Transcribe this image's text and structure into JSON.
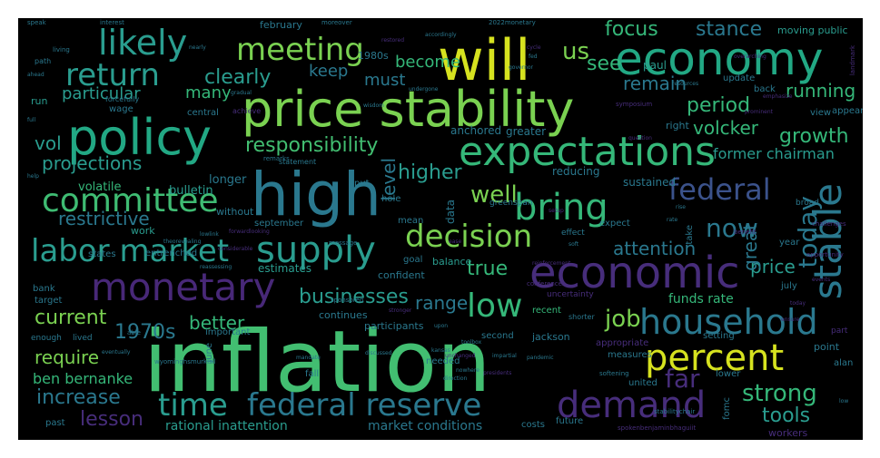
{
  "title": "",
  "palette": {
    "background": "#000000",
    "yellow": "#d6e21f",
    "light_green": "#7ad151",
    "green": "#42be71",
    "teal_green": "#22a884",
    "teal": "#2a788e",
    "blue": "#33638d",
    "purple": "#472d7b",
    "dark_purple": "#3b0f70"
  },
  "words": [
    {
      "text": "inflation",
      "color": "#42be71"
    },
    {
      "text": "price stability",
      "color": "#7ad151"
    },
    {
      "text": "will",
      "color": "#d6e21f"
    },
    {
      "text": "high",
      "color": "#2a788e"
    },
    {
      "text": "economy",
      "color": "#22a884"
    },
    {
      "text": "policy",
      "color": "#22a884"
    },
    {
      "text": "expectations",
      "color": "#35b779"
    },
    {
      "text": "economic",
      "color": "#472d7b"
    },
    {
      "text": "labor market",
      "color": "#2a9d8f"
    },
    {
      "text": "supply",
      "color": "#2a9d8f"
    },
    {
      "text": "monetary",
      "color": "#482878"
    },
    {
      "text": "committee",
      "color": "#3fbc73"
    },
    {
      "text": "likely",
      "color": "#2a9d8f"
    },
    {
      "text": "meeting",
      "color": "#7ad151"
    },
    {
      "text": "return",
      "color": "#2a9d8f"
    },
    {
      "text": "bring",
      "color": "#35b779"
    },
    {
      "text": "household",
      "color": "#2a788e"
    },
    {
      "text": "demand",
      "color": "#472d7b"
    },
    {
      "text": "federal reserve",
      "color": "#2a788e"
    },
    {
      "text": "time",
      "color": "#2a9d8f"
    },
    {
      "text": "percent",
      "color": "#d6e21f"
    },
    {
      "text": "stable",
      "color": "#2a788e"
    },
    {
      "text": "decision",
      "color": "#7ad151"
    },
    {
      "text": "low",
      "color": "#35b779"
    },
    {
      "text": "federal",
      "color": "#3b528b"
    },
    {
      "text": "responsibility",
      "color": "#42be71"
    },
    {
      "text": "today",
      "color": "#2a788e"
    },
    {
      "text": "now",
      "color": "#2a788e"
    },
    {
      "text": "well",
      "color": "#7ad151"
    },
    {
      "text": "businesses",
      "color": "#2a9d8f"
    },
    {
      "text": "current",
      "color": "#7ad151"
    },
    {
      "text": "1970s",
      "color": "#2a788e"
    },
    {
      "text": "lesson",
      "color": "#472d7b"
    },
    {
      "text": "increase",
      "color": "#2a788e"
    },
    {
      "text": "strong",
      "color": "#35b779"
    },
    {
      "text": "restrictive",
      "color": "#2a788e"
    },
    {
      "text": "clearly",
      "color": "#2a9d8f"
    },
    {
      "text": "focus",
      "color": "#35b779"
    },
    {
      "text": "stance",
      "color": "#2a788e"
    },
    {
      "text": "us",
      "color": "#7ad151"
    },
    {
      "text": "see",
      "color": "#35b779"
    },
    {
      "text": "remain",
      "color": "#2a788e"
    },
    {
      "text": "period",
      "color": "#35b779"
    },
    {
      "text": "running",
      "color": "#35b779"
    },
    {
      "text": "growth",
      "color": "#35b779"
    },
    {
      "text": "volcker",
      "color": "#35b779"
    },
    {
      "text": "former chairman",
      "color": "#2a9d8f"
    },
    {
      "text": "projections",
      "color": "#2a9d8f"
    },
    {
      "text": "particular",
      "color": "#2a9d8f"
    },
    {
      "text": "many",
      "color": "#35b779"
    },
    {
      "text": "keep",
      "color": "#2a788e"
    },
    {
      "text": "must",
      "color": "#2a788e"
    },
    {
      "text": "become",
      "color": "#35b779"
    },
    {
      "text": "higher",
      "color": "#2a9d8f"
    },
    {
      "text": "vol",
      "color": "#2a9d8f"
    },
    {
      "text": "level",
      "color": "#2a788e"
    },
    {
      "text": "true",
      "color": "#35b779"
    },
    {
      "text": "range",
      "color": "#2a788e"
    },
    {
      "text": "job",
      "color": "#7ad151"
    },
    {
      "text": "better",
      "color": "#35b779"
    },
    {
      "text": "require",
      "color": "#7ad151"
    },
    {
      "text": "ben bernanke",
      "color": "#35b779"
    },
    {
      "text": "far",
      "color": "#472d7b"
    },
    {
      "text": "attention",
      "color": "#2a788e"
    },
    {
      "text": "price",
      "color": "#2a9d8f"
    },
    {
      "text": "great",
      "color": "#2a788e"
    },
    {
      "text": "tools",
      "color": "#2a9d8f"
    },
    {
      "text": "rational inattention",
      "color": "#2a9d8f"
    },
    {
      "text": "market conditions",
      "color": "#2a788e"
    },
    {
      "text": "funds rate",
      "color": "#35b779"
    },
    {
      "text": "bulletin",
      "color": "#2a9d8f"
    },
    {
      "text": "volatile",
      "color": "#35b779"
    },
    {
      "text": "longer",
      "color": "#2a788e"
    },
    {
      "text": "estimates",
      "color": "#2a9d8f"
    },
    {
      "text": "sustained",
      "color": "#2a788e"
    },
    {
      "text": "reducing",
      "color": "#2a788e"
    },
    {
      "text": "data",
      "color": "#2a788e"
    },
    {
      "text": "greater",
      "color": "#2a788e"
    },
    {
      "text": "anchored",
      "color": "#2a788e"
    },
    {
      "text": "paul",
      "color": "#2a9d8f"
    },
    {
      "text": "february",
      "color": "#2a788e"
    },
    {
      "text": "moving public",
      "color": "#2a9d8f"
    },
    {
      "text": "1980s",
      "color": "#2a788e"
    },
    {
      "text": "right",
      "color": "#2a788e"
    },
    {
      "text": "update",
      "color": "#2a788e"
    },
    {
      "text": "central",
      "color": "#2a788e"
    },
    {
      "text": "wage",
      "color": "#2a788e"
    },
    {
      "text": "run",
      "color": "#2a9d8f"
    },
    {
      "text": "without",
      "color": "#2a788e"
    },
    {
      "text": "september",
      "color": "#2a788e"
    },
    {
      "text": "work",
      "color": "#2a9d8f"
    },
    {
      "text": "states",
      "color": "#2a788e"
    },
    {
      "text": "entrenched",
      "color": "#2a788e"
    },
    {
      "text": "bank",
      "color": "#2a788e"
    },
    {
      "text": "target",
      "color": "#2a788e"
    },
    {
      "text": "continues",
      "color": "#2a788e"
    },
    {
      "text": "participants",
      "color": "#2a788e"
    },
    {
      "text": "recent",
      "color": "#35b779"
    },
    {
      "text": "second",
      "color": "#2a788e"
    },
    {
      "text": "jackson",
      "color": "#2a788e"
    },
    {
      "text": "setting",
      "color": "#2a788e"
    },
    {
      "text": "important",
      "color": "#2a788e"
    },
    {
      "text": "needed",
      "color": "#2a788e"
    },
    {
      "text": "united",
      "color": "#2a788e"
    },
    {
      "text": "lower",
      "color": "#2a788e"
    },
    {
      "text": "point",
      "color": "#2a788e"
    },
    {
      "text": "alan",
      "color": "#2a788e"
    },
    {
      "text": "year",
      "color": "#2a788e"
    },
    {
      "text": "expect",
      "color": "#2a788e"
    },
    {
      "text": "balance",
      "color": "#2a9d8f"
    },
    {
      "text": "confident",
      "color": "#2a788e"
    },
    {
      "text": "fall",
      "color": "#2a788e"
    },
    {
      "text": "past",
      "color": "#2a788e"
    },
    {
      "text": "costs",
      "color": "#2a788e"
    },
    {
      "text": "future",
      "color": "#2a788e"
    },
    {
      "text": "july",
      "color": "#2a788e"
    },
    {
      "text": "workers",
      "color": "#472d7b"
    },
    {
      "text": "mean",
      "color": "#2a788e"
    },
    {
      "text": "put",
      "color": "#2a788e"
    },
    {
      "text": "hole",
      "color": "#2a788e"
    },
    {
      "text": "take",
      "color": "#2a788e"
    },
    {
      "text": "view",
      "color": "#2a788e"
    },
    {
      "text": "appear",
      "color": "#2a788e"
    },
    {
      "text": "broad",
      "color": "#2a788e"
    },
    {
      "text": "measures",
      "color": "#2a788e"
    },
    {
      "text": "appropriate",
      "color": "#472d7b"
    },
    {
      "text": "back",
      "color": "#2a788e"
    },
    {
      "text": "goal",
      "color": "#2a788e"
    },
    {
      "text": "effect",
      "color": "#2a788e"
    },
    {
      "text": "fomc",
      "color": "#2a788e"
    },
    {
      "text": "june",
      "color": "#2a788e"
    },
    {
      "text": "uncertainty",
      "color": "#472d7b"
    },
    {
      "text": "part",
      "color": "#472d7b"
    },
    {
      "text": "greenspan",
      "color": "#2a788e"
    },
    {
      "text": "enough",
      "color": "#2a788e"
    },
    {
      "text": "lived",
      "color": "#2a788e"
    },
    {
      "text": "shorter",
      "color": "#2a788e"
    },
    {
      "text": "forcefully",
      "color": "#2a788e"
    },
    {
      "text": "achieve",
      "color": "#472d7b"
    },
    {
      "text": "statement",
      "color": "#2a788e"
    },
    {
      "text": "remarks",
      "color": "#2a788e"
    },
    {
      "text": "symposium",
      "color": "#472d7b"
    },
    {
      "text": "benefit",
      "color": "#472d7b"
    },
    {
      "text": "challenges",
      "color": "#472d7b"
    },
    {
      "text": "opportunity",
      "color": "#472d7b"
    },
    {
      "text": "softening",
      "color": "#2a788e"
    },
    {
      "text": "conferences",
      "color": "#472d7b"
    },
    {
      "text": "sponsored",
      "color": "#2a788e"
    },
    {
      "text": "message",
      "color": "#2a788e"
    },
    {
      "text": "stabilitychair",
      "color": "#2a788e"
    },
    {
      "text": "speak",
      "color": "#2a788e"
    },
    {
      "text": "moreover",
      "color": "#2a788e"
    },
    {
      "text": "2022monetary",
      "color": "#2a788e"
    },
    {
      "text": "interest",
      "color": "#2a788e"
    },
    {
      "text": "path",
      "color": "#2a788e"
    },
    {
      "text": "living",
      "color": "#2a788e"
    },
    {
      "text": "jerome",
      "color": "#472d7b"
    },
    {
      "text": "spokenbenjaminbhaguiit",
      "color": "#472d7b"
    },
    {
      "text": "wyominghsmurkisll",
      "color": "#2a788e"
    },
    {
      "text": "forwardlooking",
      "color": "#472d7b"
    },
    {
      "text": "stronger",
      "color": "#472d7b"
    },
    {
      "text": "undergone",
      "color": "#2a788e"
    },
    {
      "text": "landmark",
      "color": "#472d7b"
    },
    {
      "text": "emphasize",
      "color": "#472d7b"
    },
    {
      "text": "question",
      "color": "#472d7b"
    },
    {
      "text": "prominent",
      "color": "#472d7b"
    },
    {
      "text": "unchanged",
      "color": "#472d7b"
    },
    {
      "text": "wisdom",
      "color": "#2a788e"
    },
    {
      "text": "kansas",
      "color": "#2a788e"
    },
    {
      "text": "able",
      "color": "#2a788e"
    },
    {
      "text": "lowlink",
      "color": "#2a788e"
    },
    {
      "text": "discussed",
      "color": "#2a788e"
    },
    {
      "text": "upon",
      "color": "#2a788e"
    },
    {
      "text": "toolbox",
      "color": "#2a788e"
    },
    {
      "text": "nowhere",
      "color": "#2a788e"
    },
    {
      "text": "direction",
      "color": "#2a788e"
    },
    {
      "text": "presidents",
      "color": "#472d7b"
    },
    {
      "text": "pandemic",
      "color": "#2a788e"
    },
    {
      "text": "impartial",
      "color": "#2a788e"
    },
    {
      "text": "resources",
      "color": "#2a788e"
    },
    {
      "text": "overarching",
      "color": "#472d7b"
    },
    {
      "text": "theorevealing",
      "color": "#2a788e"
    },
    {
      "text": "considerable",
      "color": "#472d7b"
    },
    {
      "text": "reassessing",
      "color": "#2a788e"
    },
    {
      "text": "eventually",
      "color": "#2a788e"
    },
    {
      "text": "mandate",
      "color": "#2a788e"
    },
    {
      "text": "reinforcement",
      "color": "#472d7b"
    },
    {
      "text": "ease",
      "color": "#472d7b"
    },
    {
      "text": "soft",
      "color": "#2a788e"
    },
    {
      "text": "today2",
      "color": "#472d7b"
    },
    {
      "text": "events",
      "color": "#472d7b"
    },
    {
      "text": "ensure",
      "color": "#472d7b"
    },
    {
      "text": "rate",
      "color": "#2a788e"
    },
    {
      "text": "rise",
      "color": "#2a788e"
    },
    {
      "text": "setup",
      "color": "#472d7b"
    },
    {
      "text": "accordingly",
      "color": "#2a788e"
    },
    {
      "text": "restored",
      "color": "#472d7b"
    },
    {
      "text": "cycle",
      "color": "#472d7b"
    },
    {
      "text": "fed",
      "color": "#2a788e"
    },
    {
      "text": "governor",
      "color": "#2a788e"
    },
    {
      "text": "nearly",
      "color": "#2a788e"
    },
    {
      "text": "gradual",
      "color": "#2a788e"
    },
    {
      "text": "ahead",
      "color": "#2a788e"
    },
    {
      "text": "full",
      "color": "#2a788e"
    },
    {
      "text": "help",
      "color": "#2a788e"
    },
    {
      "text": "low2",
      "color": "#2a788e"
    }
  ]
}
